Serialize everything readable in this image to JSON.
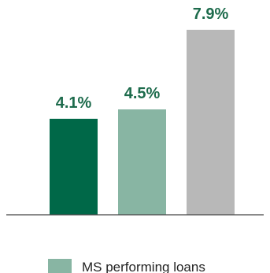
{
  "chart_data": {
    "type": "bar",
    "categories": [
      "",
      "",
      ""
    ],
    "values": [
      4.1,
      4.5,
      7.9
    ],
    "data_labels": [
      "4.1%",
      "4.5%",
      "7.9%"
    ],
    "colors": [
      "#006848",
      "#88b5a3",
      "#b8b8b8"
    ],
    "label_color": "#1d6b4c",
    "axis_color": "#444444",
    "ylim": [
      0,
      8.5
    ],
    "grid": false,
    "legend_position": "bottom",
    "legend": [
      {
        "label": "MS performing loans",
        "color": "#88b5a3"
      }
    ]
  }
}
